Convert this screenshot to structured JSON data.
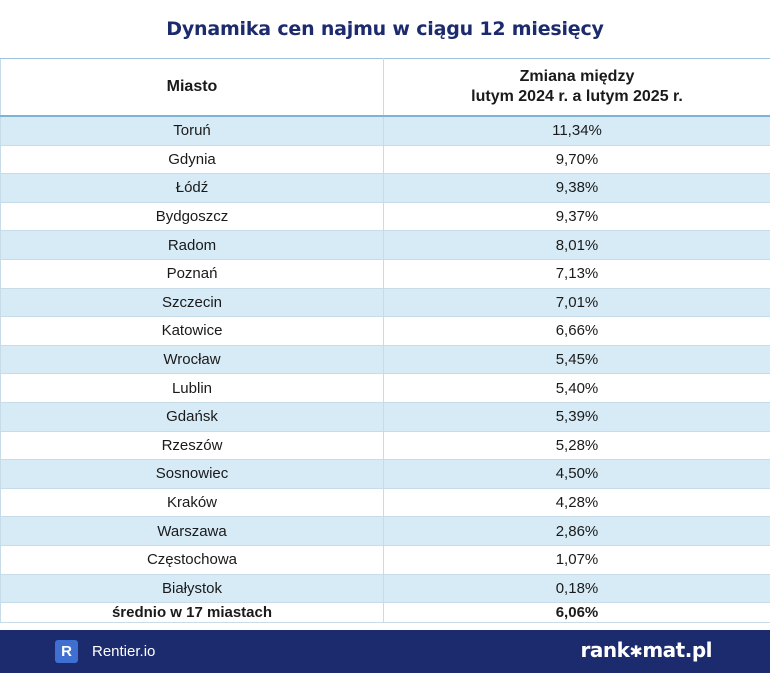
{
  "chart_data": {
    "type": "table",
    "title": "Dynamika cen najmu w ciągu 12 miesięcy",
    "columns": [
      "Miasto",
      "Zmiana między\nlutym 2024 r. a lutym 2025 r."
    ],
    "column_1": "Miasto",
    "column_2_line1": "Zmiana między",
    "column_2_line2": "lutym 2024 r. a lutym 2025 r.",
    "rows": [
      {
        "city": "Toruń",
        "change": "11,34%"
      },
      {
        "city": "Gdynia",
        "change": "9,70%"
      },
      {
        "city": "Łódź",
        "change": "9,38%"
      },
      {
        "city": "Bydgoszcz",
        "change": "9,37%"
      },
      {
        "city": "Radom",
        "change": "8,01%"
      },
      {
        "city": "Poznań",
        "change": "7,13%"
      },
      {
        "city": "Szczecin",
        "change": "7,01%"
      },
      {
        "city": "Katowice",
        "change": "6,66%"
      },
      {
        "city": "Wrocław",
        "change": "5,45%"
      },
      {
        "city": "Lublin",
        "change": "5,40%"
      },
      {
        "city": "Gdańsk",
        "change": "5,39%"
      },
      {
        "city": "Rzeszów",
        "change": "5,28%"
      },
      {
        "city": "Sosnowiec",
        "change": "4,50%"
      },
      {
        "city": "Kraków",
        "change": "4,28%"
      },
      {
        "city": "Warszawa",
        "change": "2,86%"
      },
      {
        "city": "Częstochowa",
        "change": "1,07%"
      },
      {
        "city": "Białystok",
        "change": "0,18%"
      }
    ],
    "average": {
      "label": "średnio w 17 miastach",
      "value": "6,06%"
    }
  },
  "footer": {
    "badge": "R",
    "source": "Rentier.io",
    "brand_left": "rank",
    "brand_star": "✱",
    "brand_right": "mat.pl"
  },
  "colors": {
    "title": "#1c2a6e",
    "stripe": "#d7ebf6",
    "footer_bg": "#1c2a6e",
    "badge": "#3e6fd1"
  }
}
